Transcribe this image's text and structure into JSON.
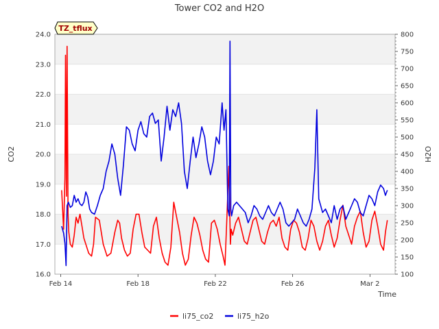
{
  "chart_data": {
    "type": "line",
    "title": "Tower CO2 and H2O",
    "site_badge": "TZ_tflux",
    "xlabel": "Time",
    "ylabel_left": "CO2",
    "ylabel_right": "H2O",
    "x_ticks": [
      {
        "day": 0,
        "label": "Feb 14"
      },
      {
        "day": 4,
        "label": "Feb 18"
      },
      {
        "day": 8,
        "label": "Feb 22"
      },
      {
        "day": 12,
        "label": "Feb 26"
      },
      {
        "day": 16,
        "label": "Mar 2"
      }
    ],
    "xlim": [
      -0.3,
      17.3
    ],
    "ylim_left": [
      16.0,
      24.0
    ],
    "ylim_right": [
      100,
      800
    ],
    "y_left_ticks": [
      "16.0",
      "17.0",
      "18.0",
      "19.0",
      "20.0",
      "21.0",
      "22.0",
      "23.0",
      "24.0"
    ],
    "y_right_ticks": [
      "100",
      "150",
      "200",
      "250",
      "300",
      "350",
      "400",
      "450",
      "500",
      "550",
      "600",
      "650",
      "700",
      "750",
      "800"
    ],
    "grid": true,
    "legend_position": "bottom-center",
    "colors": {
      "co2": "#ff0000",
      "h2o": "#0000dd",
      "band": "#f2f2f2",
      "grid": "#dcdcdc",
      "badge_fill": "#ffffc8"
    },
    "series": [
      {
        "name": "li75_co2",
        "axis": "left",
        "x": [
          0.05,
          0.15,
          0.22,
          0.25,
          0.3,
          0.33,
          0.38,
          0.42,
          0.5,
          0.6,
          0.7,
          0.8,
          0.9,
          1.0,
          1.1,
          1.2,
          1.3,
          1.45,
          1.6,
          1.7,
          1.8,
          2.0,
          2.2,
          2.4,
          2.6,
          2.8,
          2.95,
          3.05,
          3.15,
          3.3,
          3.45,
          3.6,
          3.75,
          3.9,
          4.05,
          4.2,
          4.35,
          4.5,
          4.65,
          4.8,
          4.95,
          5.1,
          5.25,
          5.4,
          5.55,
          5.7,
          5.85,
          6.0,
          6.15,
          6.3,
          6.45,
          6.6,
          6.75,
          6.9,
          7.05,
          7.2,
          7.35,
          7.5,
          7.65,
          7.8,
          7.95,
          8.1,
          8.25,
          8.4,
          8.5,
          8.6,
          8.7,
          8.78,
          8.82,
          8.9,
          9.05,
          9.2,
          9.35,
          9.5,
          9.65,
          9.8,
          9.95,
          10.1,
          10.25,
          10.4,
          10.55,
          10.7,
          10.85,
          11.0,
          11.15,
          11.3,
          11.45,
          11.6,
          11.75,
          11.9,
          12.05,
          12.2,
          12.35,
          12.5,
          12.65,
          12.8,
          12.95,
          13.1,
          13.25,
          13.4,
          13.55,
          13.7,
          13.85,
          14.0,
          14.15,
          14.3,
          14.45,
          14.6,
          14.75,
          14.9,
          15.05,
          15.2,
          15.35,
          15.5,
          15.65,
          15.8,
          15.95,
          16.1,
          16.25,
          16.4,
          16.55,
          16.7,
          16.8,
          16.9
        ],
        "values": [
          18.8,
          17.5,
          19.2,
          23.3,
          18.6,
          23.6,
          18.0,
          17.4,
          17.0,
          16.9,
          17.3,
          17.9,
          17.7,
          18.0,
          17.6,
          17.2,
          17.0,
          16.7,
          16.6,
          17.0,
          17.9,
          17.8,
          17.0,
          16.6,
          16.7,
          17.4,
          17.8,
          17.7,
          17.2,
          16.8,
          16.6,
          16.7,
          17.5,
          18.0,
          18.0,
          17.4,
          16.9,
          16.8,
          16.7,
          17.6,
          17.9,
          17.2,
          16.7,
          16.4,
          16.3,
          16.9,
          18.4,
          17.9,
          17.4,
          16.7,
          16.3,
          16.5,
          17.3,
          17.9,
          17.7,
          17.3,
          16.8,
          16.5,
          16.4,
          17.7,
          17.8,
          17.5,
          17.0,
          16.6,
          16.3,
          17.9,
          19.6,
          17.0,
          17.5,
          17.3,
          17.7,
          17.9,
          17.5,
          17.1,
          17.0,
          17.4,
          17.8,
          17.9,
          17.5,
          17.1,
          17.0,
          17.4,
          17.7,
          17.8,
          17.6,
          17.9,
          17.2,
          16.9,
          16.8,
          17.5,
          17.8,
          17.7,
          17.4,
          16.9,
          16.8,
          17.2,
          17.8,
          17.6,
          17.1,
          16.8,
          17.1,
          17.6,
          17.8,
          17.3,
          16.9,
          17.2,
          17.8,
          18.3,
          17.6,
          17.3,
          17.0,
          17.6,
          17.9,
          18.1,
          17.4,
          16.9,
          17.1,
          17.8,
          18.1,
          17.6,
          17.0,
          16.8,
          17.4,
          17.8
        ]
      },
      {
        "name": "li75_h2o",
        "axis": "right",
        "x": [
          0.05,
          0.15,
          0.22,
          0.28,
          0.33,
          0.4,
          0.5,
          0.6,
          0.7,
          0.8,
          0.9,
          1.0,
          1.1,
          1.2,
          1.3,
          1.4,
          1.5,
          1.6,
          1.75,
          1.9,
          2.05,
          2.2,
          2.35,
          2.5,
          2.65,
          2.8,
          2.95,
          3.1,
          3.25,
          3.4,
          3.55,
          3.7,
          3.85,
          4.0,
          4.15,
          4.3,
          4.45,
          4.6,
          4.75,
          4.9,
          5.05,
          5.2,
          5.35,
          5.5,
          5.65,
          5.8,
          5.95,
          6.1,
          6.25,
          6.4,
          6.55,
          6.7,
          6.85,
          7.0,
          7.15,
          7.3,
          7.45,
          7.6,
          7.75,
          7.9,
          8.05,
          8.2,
          8.35,
          8.45,
          8.55,
          8.65,
          8.72,
          8.76,
          8.8,
          8.84,
          8.95,
          9.1,
          9.25,
          9.4,
          9.55,
          9.7,
          9.85,
          10.0,
          10.15,
          10.3,
          10.45,
          10.6,
          10.75,
          10.9,
          11.05,
          11.2,
          11.35,
          11.5,
          11.65,
          11.8,
          11.95,
          12.1,
          12.25,
          12.4,
          12.55,
          12.7,
          12.85,
          13.0,
          13.15,
          13.25,
          13.35,
          13.45,
          13.55,
          13.7,
          13.85,
          14.0,
          14.15,
          14.3,
          14.45,
          14.6,
          14.75,
          14.9,
          15.05,
          15.2,
          15.35,
          15.5,
          15.65,
          15.8,
          15.95,
          16.1,
          16.25,
          16.4,
          16.55,
          16.7,
          16.8,
          16.9
        ],
        "values": [
          240,
          220,
          190,
          125,
          300,
          310,
          295,
          300,
          330,
          310,
          320,
          305,
          300,
          310,
          340,
          325,
          290,
          280,
          275,
          300,
          330,
          350,
          400,
          430,
          480,
          450,
          380,
          330,
          420,
          530,
          520,
          480,
          460,
          520,
          545,
          510,
          500,
          560,
          570,
          540,
          550,
          430,
          500,
          590,
          520,
          580,
          560,
          600,
          540,
          400,
          350,
          430,
          500,
          440,
          480,
          530,
          500,
          430,
          390,
          430,
          500,
          480,
          600,
          520,
          580,
          290,
          270,
          780,
          290,
          270,
          300,
          310,
          300,
          290,
          280,
          250,
          270,
          300,
          290,
          270,
          260,
          280,
          300,
          280,
          270,
          290,
          310,
          290,
          250,
          240,
          250,
          260,
          290,
          270,
          250,
          240,
          260,
          290,
          410,
          580,
          320,
          300,
          280,
          290,
          270,
          250,
          300,
          260,
          290,
          300,
          260,
          280,
          300,
          320,
          310,
          280,
          270,
          300,
          330,
          320,
          300,
          340,
          360,
          350,
          330,
          345
        ]
      }
    ]
  }
}
